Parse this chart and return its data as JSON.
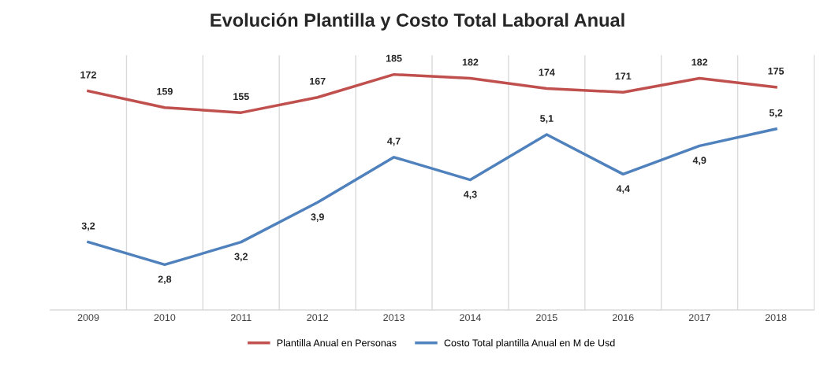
{
  "chart_data": {
    "type": "line",
    "title": "Evolución Plantilla y Costo Total Laboral Anual",
    "categories": [
      "2009",
      "2010",
      "2011",
      "2012",
      "2013",
      "2014",
      "2015",
      "2016",
      "2017",
      "2018"
    ],
    "series": [
      {
        "name": "Plantilla Anual en Personas",
        "color": "#c0504d",
        "values": [
          172,
          159,
          155,
          167,
          185,
          182,
          174,
          171,
          182,
          175
        ],
        "value_labels": [
          "172",
          "159",
          "155",
          "167",
          "185",
          "182",
          "174",
          "171",
          "182",
          "175"
        ]
      },
      {
        "name": "Costo Total plantilla Anual en M de Usd",
        "color": "#4f81bd",
        "axis": "y2",
        "values": [
          3.2,
          2.8,
          3.2,
          3.9,
          4.7,
          4.3,
          5.1,
          4.4,
          4.9,
          5.2
        ],
        "value_labels": [
          "3,2",
          "2,8",
          "3,2",
          "3,9",
          "4,7",
          "4,3",
          "5,1",
          "4,4",
          "4,9",
          "5,2"
        ]
      }
    ],
    "ylim": [
      0,
      200
    ],
    "y2lim": [
      2,
      6.5
    ],
    "tick_labels": "x",
    "grid": "x",
    "legend": "bottom",
    "marker": "none",
    "line_style": "solid"
  }
}
